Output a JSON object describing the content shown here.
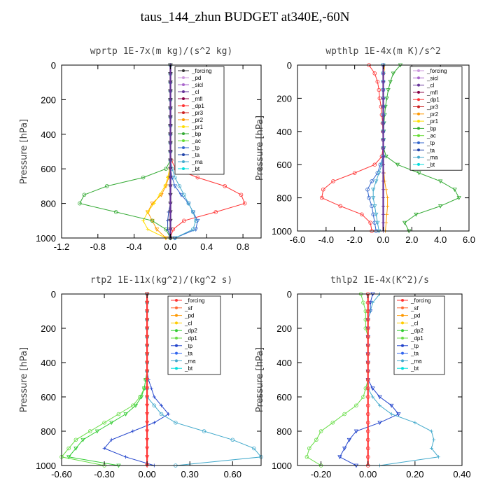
{
  "figure": {
    "title": "taus_144_zhun  BUDGET at340E,-60N"
  },
  "chart_data": [
    {
      "type": "line",
      "title": "wprtp  1E-7x(m kg)/(s^2 kg)",
      "ylabel": "Pressure [hPa]",
      "xlim": [
        -1.2,
        1.0
      ],
      "ylim": [
        1000,
        0
      ],
      "xticks": [
        -1.2,
        -0.8,
        -0.4,
        0.0,
        0.4,
        0.8
      ],
      "xticklabels": [
        "-1.2",
        "-0.8",
        "-0.4",
        "0.0",
        "0.4",
        "0.8"
      ],
      "yticks": [
        0,
        200,
        400,
        600,
        800,
        1000
      ],
      "yticklabels": [
        "0",
        "200",
        "400",
        "600",
        "800",
        "1000"
      ],
      "legend": [
        "_forcing",
        "_pd",
        "_sicl",
        "_cl",
        "_mfl",
        "_dp1",
        "_pr3",
        "_pr2",
        "_pr1",
        "_bp",
        "_ac",
        "_tp",
        "_ta",
        "_ma",
        "_bt"
      ],
      "legend_colors": [
        "#333333",
        "#cc99dd",
        "#aa66cc",
        "#663399",
        "#880044",
        "#ff3333",
        "#cc2222",
        "#ff9900",
        "#ffdd00",
        "#33aa33",
        "#66dd33",
        "#3366cc",
        "#2244aa",
        "#44aacc",
        "#00dddd"
      ],
      "x": [
        0,
        50,
        100,
        150,
        200,
        250,
        300,
        350,
        400,
        450,
        500,
        550,
        600,
        650,
        700,
        750,
        800,
        850,
        900,
        950,
        1000
      ],
      "series": [
        {
          "name": "_dp1",
          "color": "#ff3333",
          "values": [
            0,
            0,
            0,
            0,
            0,
            0,
            0,
            0,
            0,
            0,
            0,
            0.01,
            0.06,
            0.3,
            0.6,
            0.78,
            0.82,
            0.5,
            0.15,
            0.03,
            0
          ]
        },
        {
          "name": "_pr2",
          "color": "#ff9900",
          "values": [
            0,
            0,
            0,
            0,
            0,
            0,
            0,
            0,
            0,
            0,
            0,
            0,
            0,
            -0.02,
            -0.05,
            -0.1,
            -0.2,
            -0.25,
            -0.2,
            -0.15,
            -0.05
          ]
        },
        {
          "name": "_pr1",
          "color": "#ffdd00",
          "values": [
            0,
            0,
            0,
            0,
            0,
            0,
            0,
            0,
            0,
            0,
            0,
            0,
            -0.01,
            -0.03,
            -0.06,
            -0.12,
            -0.18,
            -0.25,
            -0.3,
            -0.25,
            -0.05
          ]
        },
        {
          "name": "_bp",
          "color": "#33aa33",
          "values": [
            0,
            0,
            0,
            0,
            0,
            0,
            0,
            0,
            0,
            0,
            0,
            0,
            -0.05,
            -0.3,
            -0.7,
            -0.95,
            -1.0,
            -0.6,
            -0.2,
            -0.05,
            0
          ]
        },
        {
          "name": "_tp",
          "color": "#3366cc",
          "values": [
            0,
            0,
            0,
            0,
            0,
            0,
            0,
            0,
            0,
            0,
            0,
            0,
            0,
            0.02,
            0.05,
            0.12,
            0.2,
            0.25,
            0.3,
            0.28,
            0.05
          ]
        },
        {
          "name": "_ta",
          "color": "#2244aa",
          "values": [
            0,
            0,
            0,
            0,
            0,
            0,
            0,
            0,
            0,
            0,
            0,
            0,
            0,
            0,
            0,
            0,
            0,
            -0.02,
            -0.03,
            -0.03,
            0
          ]
        },
        {
          "name": "_ma",
          "color": "#44aacc",
          "values": [
            0,
            0,
            0,
            0,
            0,
            0,
            0,
            0,
            0,
            0,
            0,
            0,
            0.02,
            0.05,
            0.1,
            0.15,
            0.2,
            0.25,
            0.28,
            0.25,
            0.05
          ]
        },
        {
          "name": "_forcing",
          "color": "#333333",
          "values": [
            0,
            0,
            0,
            0,
            0,
            0,
            0,
            0,
            0,
            0,
            0,
            0,
            0,
            0,
            0,
            0,
            0,
            0,
            0,
            0,
            0
          ]
        },
        {
          "name": "_cl",
          "color": "#663399",
          "values": [
            0,
            0,
            0,
            0,
            0,
            0,
            0,
            0,
            0,
            0,
            0,
            0,
            0,
            0,
            0,
            0,
            0,
            0,
            0,
            0,
            0
          ]
        }
      ]
    },
    {
      "type": "line",
      "title": "wpthlp  1E-4x(m K)/s^2",
      "ylabel": "Pressure [hPa]",
      "xlim": [
        -6.0,
        6.0
      ],
      "ylim": [
        1000,
        0
      ],
      "xticks": [
        -6.0,
        -4.0,
        -2.0,
        0.0,
        2.0,
        4.0,
        6.0
      ],
      "xticklabels": [
        "-6.0",
        "-4.0",
        "-2.0",
        "0.0",
        "2.0",
        "4.0",
        "6.0"
      ],
      "yticks": [
        0,
        200,
        400,
        600,
        800,
        1000
      ],
      "yticklabels": [
        "0",
        "200",
        "400",
        "600",
        "800",
        "1000"
      ],
      "legend": [
        "_forcing",
        "_sicl",
        "_cl",
        "_mfl",
        "_dp1",
        "_pr3",
        "_pr2",
        "_pr1",
        "_bp",
        "_ac",
        "_tp",
        "_ta",
        "_ma",
        "_bt"
      ],
      "legend_colors": [
        "#cc99dd",
        "#aa66cc",
        "#663399",
        "#880044",
        "#ff3333",
        "#cc2222",
        "#ff9900",
        "#ffdd00",
        "#33aa33",
        "#66dd33",
        "#3366cc",
        "#2244aa",
        "#44aacc",
        "#00dddd"
      ],
      "x": [
        0,
        50,
        100,
        150,
        200,
        250,
        300,
        350,
        400,
        450,
        500,
        550,
        600,
        650,
        700,
        750,
        800,
        850,
        900,
        950,
        1000
      ],
      "series": [
        {
          "name": "_dp1",
          "color": "#ff3333",
          "values": [
            -1.0,
            -0.6,
            -0.4,
            -0.3,
            -0.25,
            -0.15,
            -0.1,
            -0.05,
            -0.03,
            -0.02,
            -0.02,
            -0.1,
            -0.6,
            -2.0,
            -3.5,
            -4.2,
            -4.3,
            -3.0,
            -1.5,
            -0.9,
            -0.8
          ]
        },
        {
          "name": "_bp",
          "color": "#33aa33",
          "values": [
            1.2,
            0.7,
            0.5,
            0.35,
            0.25,
            0.15,
            0.1,
            0.05,
            0.03,
            0.02,
            0.03,
            0.2,
            1.0,
            2.5,
            4.0,
            5.0,
            5.3,
            4.0,
            2.3,
            1.5,
            1.8
          ]
        },
        {
          "name": "_pr2",
          "color": "#ff9900",
          "values": [
            0.1,
            0.05,
            0.02,
            0,
            0,
            0,
            0,
            0,
            0,
            0,
            0,
            0,
            0,
            0.05,
            0.1,
            0.2,
            0.3,
            0.3,
            0.25,
            0.2,
            0.15
          ]
        },
        {
          "name": "_tp",
          "color": "#3366cc",
          "values": [
            0,
            0,
            0,
            0,
            0,
            0,
            0,
            0,
            0,
            0,
            0,
            0,
            -0.2,
            -0.4,
            -0.8,
            -1.1,
            -1.0,
            -0.8,
            -0.7,
            -0.6,
            -0.5
          ]
        },
        {
          "name": "_ma",
          "color": "#44aacc",
          "values": [
            0,
            0,
            0,
            0,
            0,
            0,
            0,
            0,
            0,
            0,
            0,
            0,
            -0.1,
            -0.3,
            -0.5,
            -0.7,
            -0.7,
            -0.6,
            -0.5,
            -0.4,
            -0.3
          ]
        },
        {
          "name": "_cl",
          "color": "#663399",
          "values": [
            0,
            0,
            0,
            0,
            0,
            0,
            0,
            0,
            0,
            0,
            0,
            0,
            0,
            0,
            0,
            0,
            0,
            0,
            0,
            0,
            0
          ]
        }
      ]
    },
    {
      "type": "line",
      "title": "rtp2  1E-11x(kg^2)/(kg^2 s)",
      "ylabel": "Pressure [hPa]",
      "xlim": [
        -0.6,
        0.8
      ],
      "ylim": [
        1000,
        0
      ],
      "xticks": [
        -0.6,
        -0.3,
        0.0,
        0.3,
        0.6
      ],
      "xticklabels": [
        "-0.60",
        "-0.30",
        "0.00",
        "0.30",
        "0.60"
      ],
      "yticks": [
        0,
        200,
        400,
        600,
        800,
        1000
      ],
      "yticklabels": [
        "0",
        "200",
        "400",
        "600",
        "800",
        "1000"
      ],
      "legend": [
        "_forcing",
        "_sf",
        "_pd",
        "_cl",
        "_dp2",
        "_dp1",
        "_tp",
        "_ta",
        "_ma",
        "_bt"
      ],
      "legend_colors": [
        "#ff3333",
        "#ff6633",
        "#ff9900",
        "#ffcc00",
        "#33cc33",
        "#66dd44",
        "#2244cc",
        "#3366ee",
        "#44aacc",
        "#00dddd"
      ],
      "x": [
        0,
        50,
        100,
        150,
        200,
        250,
        300,
        350,
        400,
        450,
        500,
        550,
        600,
        650,
        700,
        750,
        800,
        850,
        900,
        950,
        1000
      ],
      "series": [
        {
          "name": "_dp1",
          "color": "#66dd44",
          "values": [
            0,
            0,
            0,
            0,
            0,
            0,
            0,
            0,
            0,
            0,
            -0.01,
            -0.02,
            -0.05,
            -0.1,
            -0.2,
            -0.3,
            -0.4,
            -0.5,
            -0.55,
            -0.6,
            -0.3
          ]
        },
        {
          "name": "_dp2",
          "color": "#33cc33",
          "values": [
            0,
            0,
            0,
            0,
            0,
            0,
            0,
            0,
            0,
            0,
            -0.01,
            -0.02,
            -0.04,
            -0.08,
            -0.15,
            -0.25,
            -0.35,
            -0.45,
            -0.5,
            -0.55,
            -0.2
          ]
        },
        {
          "name": "_tp",
          "color": "#2244cc",
          "values": [
            0,
            0,
            0,
            0,
            0,
            0,
            0,
            0,
            0,
            0,
            0.01,
            0.03,
            0.05,
            0.1,
            0.15,
            0.05,
            -0.1,
            -0.25,
            -0.3,
            -0.15,
            0.05
          ]
        },
        {
          "name": "_ma",
          "color": "#44aacc",
          "values": [
            0,
            0,
            0,
            0,
            0,
            0,
            0,
            0,
            0,
            0,
            0,
            0,
            0,
            0.05,
            0.1,
            0.2,
            0.4,
            0.6,
            0.75,
            0.8,
            0.2
          ]
        },
        {
          "name": "_forcing",
          "color": "#ff3333",
          "values": [
            0,
            0,
            0,
            0,
            0,
            0,
            0,
            0,
            0,
            0,
            0,
            0,
            0,
            0,
            0,
            0,
            0,
            0,
            0,
            0,
            0
          ]
        }
      ]
    },
    {
      "type": "line",
      "title": "thlp2  1E-4x(K^2)/s",
      "ylabel": "Pressure [hPa]",
      "xlim": [
        -0.3,
        0.4
      ],
      "ylim": [
        1000,
        0
      ],
      "xticks": [
        -0.2,
        0.0,
        0.2,
        0.4
      ],
      "xticklabels": [
        "-0.20",
        "0.00",
        "0.20",
        "0.40"
      ],
      "yticks": [
        0,
        200,
        400,
        600,
        800,
        1000
      ],
      "yticklabels": [
        "0",
        "200",
        "400",
        "600",
        "800",
        "1000"
      ],
      "legend": [
        "_forcing",
        "_sf",
        "_pd",
        "_cl",
        "_dp2",
        "_dp1",
        "_tp",
        "_ta",
        "_ma",
        "_bt"
      ],
      "legend_colors": [
        "#ff3333",
        "#ff6633",
        "#ff9900",
        "#ffcc00",
        "#33cc33",
        "#66dd44",
        "#2244cc",
        "#3366ee",
        "#44aacc",
        "#00dddd"
      ],
      "x": [
        0,
        50,
        100,
        150,
        200,
        250,
        300,
        350,
        400,
        450,
        500,
        550,
        600,
        650,
        700,
        750,
        800,
        850,
        900,
        950,
        1000
      ],
      "series": [
        {
          "name": "_dp1",
          "color": "#66dd44",
          "values": [
            -0.03,
            -0.02,
            -0.01,
            -0.01,
            -0.01,
            0,
            0,
            0,
            0,
            0,
            0,
            -0.01,
            -0.02,
            -0.05,
            -0.1,
            -0.15,
            -0.2,
            -0.22,
            -0.25,
            -0.26,
            -0.2
          ]
        },
        {
          "name": "_tp",
          "color": "#2244cc",
          "values": [
            0.02,
            0.01,
            0.01,
            0,
            0,
            0,
            0,
            0,
            0,
            0,
            0,
            0.02,
            0.05,
            0.1,
            0.13,
            0.05,
            -0.05,
            -0.08,
            -0.1,
            -0.12,
            -0.05
          ]
        },
        {
          "name": "_ma",
          "color": "#44aacc",
          "values": [
            0.05,
            0.02,
            0.01,
            0,
            0,
            0,
            0,
            0,
            0,
            0,
            0,
            0,
            0.02,
            0.05,
            0.1,
            0.2,
            0.27,
            0.28,
            0.27,
            0.3,
            0.05
          ]
        },
        {
          "name": "_forcing",
          "color": "#ff3333",
          "values": [
            0,
            0,
            0,
            0,
            0,
            0,
            0,
            0,
            0,
            0,
            0,
            0,
            0,
            0,
            0,
            0,
            0,
            0,
            0,
            0,
            0
          ]
        }
      ]
    }
  ]
}
